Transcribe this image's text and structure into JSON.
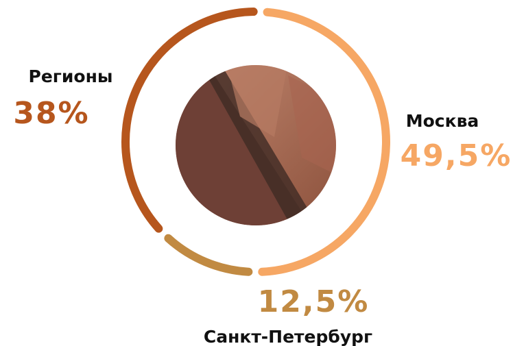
{
  "chart_data": {
    "type": "donut",
    "categories": [
      "Москва",
      "Санкт-Петербург",
      "Регионы"
    ],
    "values": [
      49.5,
      12.5,
      38
    ],
    "value_labels": [
      "49,5%",
      "12,5%",
      "38%"
    ],
    "colors": [
      "#f6a764",
      "#c18a42",
      "#b6561d"
    ]
  }
}
